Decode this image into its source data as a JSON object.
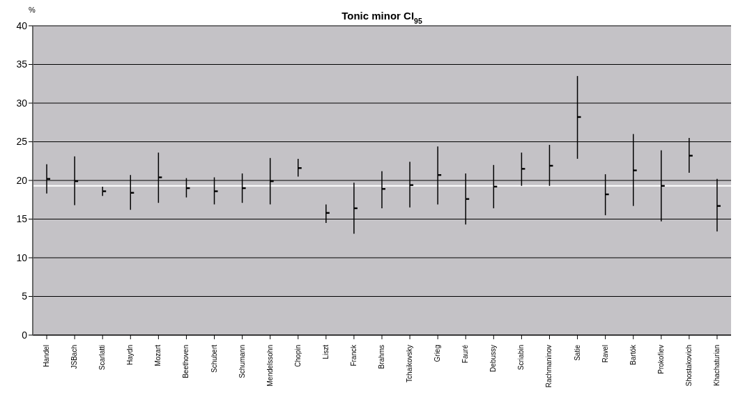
{
  "chart_data": {
    "type": "scatter",
    "title": "Tonic minor CI$_{95}$",
    "ylabel": "%",
    "categories": [
      "Handel",
      "JSBach",
      "Scarlatti",
      "Haydn",
      "Mozart",
      "Beethoven",
      "Schubert",
      "Schumann",
      "Mendelssohn",
      "Chopin",
      "Liszt",
      "Franck",
      "Brahms",
      "Tchaikovsky",
      "Grieg",
      "Fauré",
      "Debussy",
      "Scriabin",
      "Rachmaninov",
      "Satie",
      "Ravel",
      "Bartók",
      "Prokofiev",
      "Shostakovich",
      "Khachaturian"
    ],
    "series": [
      {
        "color": "#000000",
        "values": [
          20.2,
          19.9,
          18.6,
          18.4,
          20.4,
          19.0,
          18.6,
          19.0,
          19.9,
          21.6,
          15.8,
          16.4,
          18.9,
          19.4,
          20.7,
          17.6,
          19.2,
          21.5,
          21.9,
          28.2,
          18.2,
          21.3,
          19.3,
          23.2,
          16.7
        ],
        "errors": [
          [
            18.3,
            22.1
          ],
          [
            16.8,
            23.1
          ],
          [
            18.0,
            19.2
          ],
          [
            16.2,
            20.7
          ],
          [
            17.1,
            23.6
          ],
          [
            17.8,
            20.3
          ],
          [
            16.9,
            20.4
          ],
          [
            17.1,
            20.9
          ],
          [
            16.9,
            22.9
          ],
          [
            20.5,
            22.8
          ],
          [
            14.5,
            16.9
          ],
          [
            13.1,
            19.7
          ],
          [
            16.4,
            21.2
          ],
          [
            16.5,
            22.4
          ],
          [
            16.9,
            24.4
          ],
          [
            14.3,
            20.9
          ],
          [
            16.4,
            22.0
          ],
          [
            19.3,
            23.6
          ],
          [
            19.3,
            24.6
          ],
          [
            22.8,
            33.5
          ],
          [
            15.5,
            20.8
          ],
          [
            16.7,
            26.0
          ],
          [
            14.7,
            23.9
          ],
          [
            21.0,
            25.5
          ],
          [
            13.4,
            20.2
          ]
        ]
      }
    ],
    "ylim": [
      0,
      40
    ],
    "yticks": [
      0,
      5,
      10,
      15,
      20,
      25,
      30,
      35,
      40
    ],
    "grid": "y",
    "ref_lines": [
      {
        "axis": "y",
        "value": 19.3,
        "color": "#ffffff"
      }
    ]
  }
}
